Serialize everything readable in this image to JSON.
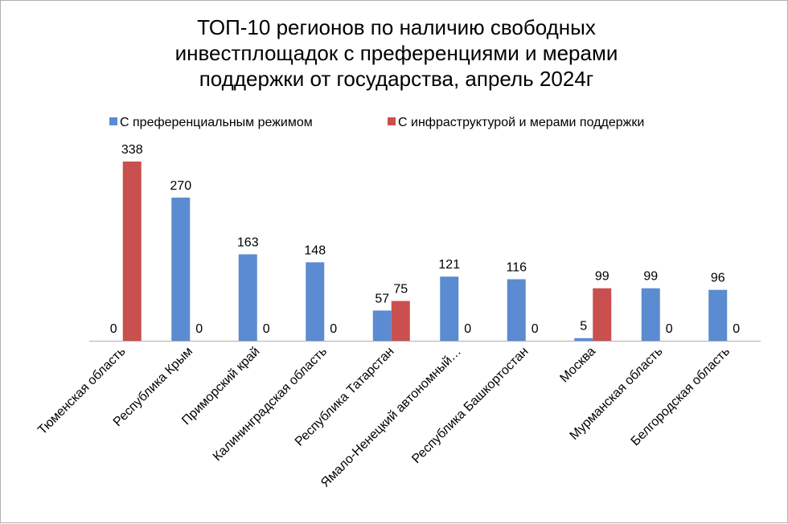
{
  "chart_data": {
    "type": "bar",
    "title_lines": [
      "ТОП-10 регионов по наличию свободных",
      "инвестплощадок с преференциями и мерами",
      "поддержки от государства, апрель 2024г"
    ],
    "categories": [
      "Тюменская область",
      "Республика Крым",
      "Приморский край",
      "Калининградская область",
      "Республика  Татарстан",
      "Ямало-Ненецкий автономный…",
      "Республика Башкортостан",
      "Москва",
      "Мурманская область",
      "Белгородская область"
    ],
    "series": [
      {
        "name": "С преференциальным режимом",
        "color": "#5B8BD0",
        "values": [
          0,
          270,
          163,
          148,
          57,
          121,
          116,
          5,
          99,
          96
        ]
      },
      {
        "name": "С инфраструктурой и мерами поддержки",
        "color": "#C9504E",
        "values": [
          338,
          0,
          0,
          0,
          75,
          0,
          0,
          99,
          0,
          0
        ]
      }
    ],
    "ylim": [
      0,
      370
    ],
    "xlabel": "",
    "ylabel": "",
    "grid": false,
    "legend_position": "top"
  }
}
